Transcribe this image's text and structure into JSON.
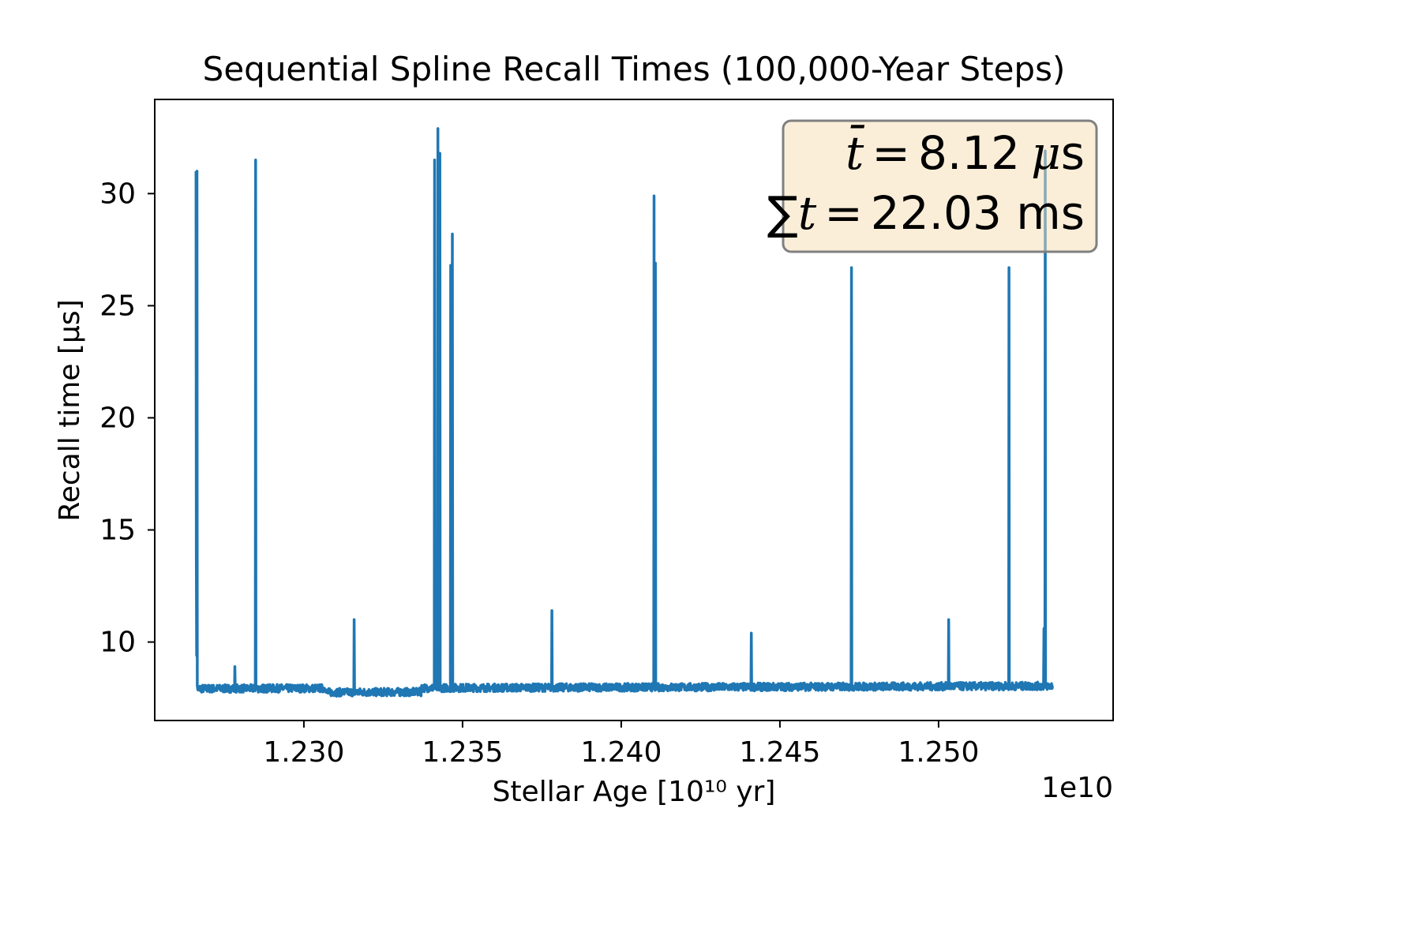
{
  "chart_data": {
    "type": "line",
    "title": "Sequential Spline Recall Times (100,000-Year Steps)",
    "xlabel": "Stellar Age [10¹⁰ yr]",
    "ylabel": "Recall time [μs]",
    "x_offset_label": "1e10",
    "xlim": [
      1.2253,
      1.2555
    ],
    "ylim": [
      6.5,
      34.2
    ],
    "xticks": [
      1.23,
      1.235,
      1.24,
      1.245,
      1.25
    ],
    "xtick_labels": [
      "1.230",
      "1.235",
      "1.240",
      "1.245",
      "1.250"
    ],
    "yticks": [
      10,
      15,
      20,
      25,
      30
    ],
    "ytick_labels": [
      "10",
      "15",
      "20",
      "25",
      "30"
    ],
    "grid": false,
    "line_color": "#1f77b4",
    "baseline": 8.0,
    "x_range": [
      1.2266,
      1.2536
    ],
    "spikes": [
      {
        "x": 1.22663,
        "y": 31.0
      },
      {
        "x": 1.22783,
        "y": 8.9
      },
      {
        "x": 1.22848,
        "y": 31.5
      },
      {
        "x": 1.23158,
        "y": 11.0
      },
      {
        "x": 1.23412,
        "y": 31.5
      },
      {
        "x": 1.23422,
        "y": 32.9
      },
      {
        "x": 1.23428,
        "y": 31.8
      },
      {
        "x": 1.23463,
        "y": 26.8
      },
      {
        "x": 1.23468,
        "y": 28.2
      },
      {
        "x": 1.23782,
        "y": 11.4
      },
      {
        "x": 1.24103,
        "y": 29.9
      },
      {
        "x": 1.24108,
        "y": 26.9
      },
      {
        "x": 1.2441,
        "y": 10.4
      },
      {
        "x": 1.24726,
        "y": 26.7
      },
      {
        "x": 1.25032,
        "y": 11.0
      },
      {
        "x": 1.25222,
        "y": 26.7
      },
      {
        "x": 1.25332,
        "y": 10.6
      },
      {
        "x": 1.25336,
        "y": 31.9
      }
    ],
    "annotation": {
      "mean_value": "8.12",
      "mean_unit": "s",
      "sum_value": "22.03 ms"
    },
    "annotation_box": {
      "face": "#f5deb3",
      "alpha": 0.5,
      "edge": "#808080"
    }
  }
}
